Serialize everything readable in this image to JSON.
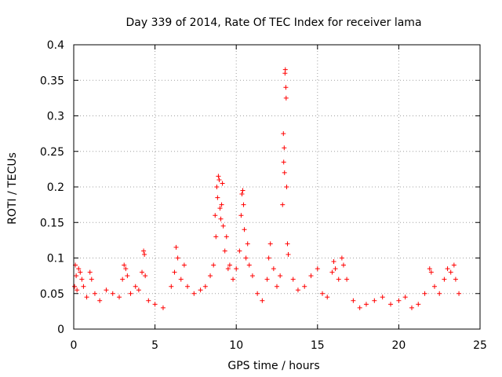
{
  "chart_data": {
    "type": "scatter",
    "title": "Day 339 of 2014, Rate Of TEC Index for receiver lama",
    "xlabel": "GPS time / hours",
    "ylabel": "ROTI / TECUs",
    "xlim": [
      0,
      25
    ],
    "ylim": [
      0,
      0.4
    ],
    "grid": true,
    "marker": "+",
    "color": "#ff0000",
    "x_ticks": [
      0,
      5,
      10,
      15,
      20,
      25
    ],
    "x_tick_labels": [
      "0",
      "5",
      "10",
      "15",
      "20",
      "25"
    ],
    "y_ticks": [
      0,
      0.05,
      0.1,
      0.15,
      0.2,
      0.25,
      0.3,
      0.35,
      0.4
    ],
    "y_tick_labels": [
      "0",
      "0.05",
      "0.1",
      "0.15",
      "0.2",
      "0.25",
      "0.3",
      "0.35",
      "0.4"
    ],
    "series": [
      {
        "name": "ROTI",
        "points": [
          [
            0.05,
            0.06
          ],
          [
            0.1,
            0.09
          ],
          [
            0.15,
            0.075
          ],
          [
            0.2,
            0.055
          ],
          [
            0.3,
            0.085
          ],
          [
            0.4,
            0.08
          ],
          [
            0.5,
            0.07
          ],
          [
            0.6,
            0.06
          ],
          [
            0.8,
            0.045
          ],
          [
            1.0,
            0.08
          ],
          [
            1.1,
            0.07
          ],
          [
            1.3,
            0.05
          ],
          [
            1.6,
            0.04
          ],
          [
            2.0,
            0.055
          ],
          [
            2.4,
            0.05
          ],
          [
            2.8,
            0.045
          ],
          [
            3.0,
            0.07
          ],
          [
            3.1,
            0.09
          ],
          [
            3.2,
            0.085
          ],
          [
            3.3,
            0.075
          ],
          [
            3.5,
            0.05
          ],
          [
            3.8,
            0.06
          ],
          [
            4.0,
            0.055
          ],
          [
            4.2,
            0.08
          ],
          [
            4.3,
            0.11
          ],
          [
            4.35,
            0.105
          ],
          [
            4.4,
            0.075
          ],
          [
            4.6,
            0.04
          ],
          [
            5.0,
            0.035
          ],
          [
            5.5,
            0.03
          ],
          [
            6.0,
            0.06
          ],
          [
            6.2,
            0.08
          ],
          [
            6.3,
            0.115
          ],
          [
            6.4,
            0.1
          ],
          [
            6.6,
            0.07
          ],
          [
            6.8,
            0.09
          ],
          [
            7.0,
            0.06
          ],
          [
            7.4,
            0.05
          ],
          [
            7.8,
            0.055
          ],
          [
            8.1,
            0.06
          ],
          [
            8.4,
            0.075
          ],
          [
            8.6,
            0.09
          ],
          [
            8.7,
            0.16
          ],
          [
            8.75,
            0.13
          ],
          [
            8.8,
            0.2
          ],
          [
            8.85,
            0.185
          ],
          [
            8.9,
            0.215
          ],
          [
            8.95,
            0.21
          ],
          [
            9.0,
            0.17
          ],
          [
            9.05,
            0.155
          ],
          [
            9.1,
            0.175
          ],
          [
            9.15,
            0.205
          ],
          [
            9.2,
            0.145
          ],
          [
            9.3,
            0.11
          ],
          [
            9.4,
            0.13
          ],
          [
            9.5,
            0.085
          ],
          [
            9.6,
            0.09
          ],
          [
            9.8,
            0.07
          ],
          [
            10.0,
            0.085
          ],
          [
            10.2,
            0.11
          ],
          [
            10.3,
            0.16
          ],
          [
            10.35,
            0.19
          ],
          [
            10.4,
            0.195
          ],
          [
            10.45,
            0.175
          ],
          [
            10.5,
            0.14
          ],
          [
            10.6,
            0.1
          ],
          [
            10.7,
            0.12
          ],
          [
            10.8,
            0.09
          ],
          [
            11.0,
            0.075
          ],
          [
            11.3,
            0.05
          ],
          [
            11.6,
            0.04
          ],
          [
            11.9,
            0.07
          ],
          [
            12.0,
            0.1
          ],
          [
            12.1,
            0.12
          ],
          [
            12.3,
            0.085
          ],
          [
            12.5,
            0.06
          ],
          [
            12.7,
            0.075
          ],
          [
            12.85,
            0.175
          ],
          [
            12.9,
            0.275
          ],
          [
            12.92,
            0.235
          ],
          [
            12.95,
            0.255
          ],
          [
            12.97,
            0.22
          ],
          [
            13.0,
            0.36
          ],
          [
            13.02,
            0.365
          ],
          [
            13.05,
            0.34
          ],
          [
            13.07,
            0.325
          ],
          [
            13.1,
            0.2
          ],
          [
            13.15,
            0.12
          ],
          [
            13.2,
            0.105
          ],
          [
            13.5,
            0.07
          ],
          [
            13.8,
            0.055
          ],
          [
            14.2,
            0.06
          ],
          [
            14.6,
            0.075
          ],
          [
            15.0,
            0.085
          ],
          [
            15.3,
            0.05
          ],
          [
            15.6,
            0.045
          ],
          [
            15.9,
            0.08
          ],
          [
            16.0,
            0.095
          ],
          [
            16.1,
            0.085
          ],
          [
            16.3,
            0.07
          ],
          [
            16.5,
            0.1
          ],
          [
            16.6,
            0.09
          ],
          [
            16.8,
            0.07
          ],
          [
            17.2,
            0.04
          ],
          [
            17.6,
            0.03
          ],
          [
            18.0,
            0.035
          ],
          [
            18.5,
            0.04
          ],
          [
            19.0,
            0.045
          ],
          [
            19.5,
            0.035
          ],
          [
            20.0,
            0.04
          ],
          [
            20.4,
            0.045
          ],
          [
            20.8,
            0.03
          ],
          [
            21.2,
            0.035
          ],
          [
            21.6,
            0.05
          ],
          [
            21.9,
            0.085
          ],
          [
            22.0,
            0.08
          ],
          [
            22.2,
            0.06
          ],
          [
            22.5,
            0.05
          ],
          [
            22.8,
            0.07
          ],
          [
            23.0,
            0.085
          ],
          [
            23.2,
            0.08
          ],
          [
            23.4,
            0.09
          ],
          [
            23.5,
            0.07
          ],
          [
            23.7,
            0.05
          ]
        ]
      }
    ]
  }
}
